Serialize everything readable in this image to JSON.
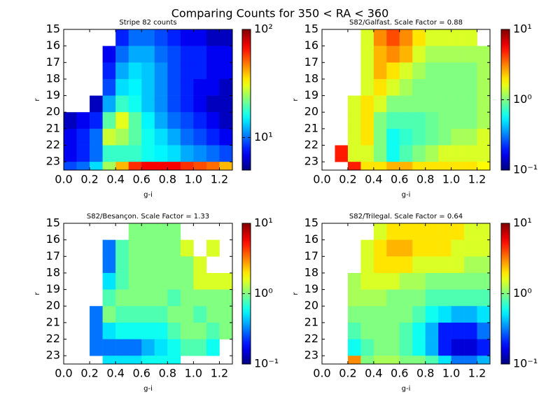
{
  "title": "Comparing Counts for 350 < RA < 360",
  "chart_data": [
    {
      "type": "heatmap",
      "title": "Stripe 82 counts",
      "xlabel": "g-i",
      "ylabel": "r",
      "colormap": "jet",
      "xbins": [
        0,
        0.1,
        0.2,
        0.3,
        0.4,
        0.5,
        0.6,
        0.7,
        0.8,
        0.9,
        1.0,
        1.1,
        1.2,
        1.3
      ],
      "ybins": [
        15,
        16,
        17,
        18,
        19,
        20,
        21,
        22,
        23,
        23.5
      ],
      "values": [
        [
          null,
          null,
          null,
          null,
          8,
          10,
          10,
          9,
          8,
          7,
          7,
          6,
          6
        ],
        [
          null,
          null,
          null,
          7,
          10,
          12,
          12,
          10,
          9,
          8,
          8,
          7,
          7
        ],
        [
          null,
          null,
          null,
          8,
          12,
          14,
          13,
          11,
          9,
          8,
          8,
          7,
          7
        ],
        [
          null,
          null,
          null,
          9,
          14,
          15,
          13,
          11,
          9,
          8,
          7,
          7,
          6
        ],
        [
          null,
          null,
          6,
          12,
          18,
          16,
          13,
          11,
          9,
          8,
          7,
          6,
          6
        ],
        [
          6,
          7,
          8,
          20,
          30,
          20,
          15,
          12,
          10,
          9,
          8,
          7,
          6
        ],
        [
          7,
          8,
          10,
          28,
          25,
          20,
          16,
          14,
          12,
          10,
          9,
          8,
          7
        ],
        [
          7,
          8,
          10,
          18,
          18,
          18,
          16,
          15,
          14,
          12,
          11,
          10,
          9
        ],
        [
          9,
          10,
          14,
          25,
          40,
          60,
          70,
          70,
          70,
          60,
          55,
          50,
          40
        ]
      ],
      "xlim": [
        0,
        1.3
      ],
      "ylim": [
        15,
        23.5
      ],
      "y_inverted": true,
      "xticks": [
        {
          "value": 0,
          "label": "0.0"
        },
        {
          "value": 0.2,
          "label": "0.2"
        },
        {
          "value": 0.4,
          "label": "0.4"
        },
        {
          "value": 0.6,
          "label": "0.6"
        },
        {
          "value": 0.8,
          "label": "0.8"
        },
        {
          "value": 1.0,
          "label": "1.0"
        },
        {
          "value": 1.2,
          "label": "1.2"
        }
      ],
      "yticks": [
        15,
        16,
        17,
        18,
        19,
        20,
        21,
        22,
        23
      ],
      "colorbar": {
        "scale": "log",
        "clim": [
          5,
          100
        ],
        "ticks": [
          {
            "value": 10,
            "label": "10¹"
          },
          {
            "value": 100,
            "label": "10²"
          }
        ]
      }
    },
    {
      "type": "heatmap",
      "title": "S82/Galfast. Scale Factor = 0.88",
      "xlabel": "g-i",
      "ylabel": "r",
      "colormap": "jet",
      "xbins": [
        0,
        0.1,
        0.2,
        0.3,
        0.4,
        0.5,
        0.6,
        0.7,
        0.8,
        0.9,
        1.0,
        1.1,
        1.2,
        1.3
      ],
      "ybins": [
        15,
        16,
        17,
        18,
        19,
        20,
        21,
        22,
        23,
        23.5
      ],
      "values": [
        [
          null,
          null,
          null,
          1.5,
          3,
          4,
          3,
          2,
          1.5,
          1.5,
          1.5,
          1.5,
          null
        ],
        [
          null,
          null,
          null,
          1.5,
          2.5,
          3,
          2.5,
          1.5,
          1.2,
          1.2,
          1.2,
          1.2,
          1.2
        ],
        [
          null,
          null,
          null,
          1.5,
          2.5,
          2,
          1.5,
          1.2,
          1,
          1,
          1,
          1,
          1.2
        ],
        [
          null,
          null,
          null,
          1.5,
          2,
          1.5,
          1.2,
          1,
          1,
          1,
          1,
          1,
          1.2
        ],
        [
          null,
          null,
          1.5,
          2,
          1.5,
          1,
          1,
          1,
          1,
          1,
          1,
          1,
          1.2
        ],
        [
          null,
          null,
          1.5,
          2,
          1,
          0.8,
          0.8,
          0.8,
          0.9,
          1,
          1,
          1,
          1.2
        ],
        [
          null,
          null,
          1.5,
          2,
          1,
          0.6,
          0.7,
          0.8,
          0.9,
          1,
          1.2,
          1.2,
          1.5
        ],
        [
          null,
          5,
          1.5,
          1.5,
          1,
          0.6,
          0.8,
          1,
          1.2,
          1.5,
          1.5,
          1.5,
          1.5
        ],
        [
          null,
          null,
          5,
          2,
          2,
          2.5,
          2.5,
          2,
          2,
          2,
          2,
          2,
          1.8
        ]
      ],
      "xlim": [
        0,
        1.3
      ],
      "ylim": [
        15,
        23.5
      ],
      "y_inverted": true,
      "xticks": [
        {
          "value": 0,
          "label": "0.0"
        },
        {
          "value": 0.2,
          "label": "0.2"
        },
        {
          "value": 0.4,
          "label": "0.4"
        },
        {
          "value": 0.6,
          "label": "0.6"
        },
        {
          "value": 0.8,
          "label": "0.8"
        },
        {
          "value": 1.0,
          "label": "1.0"
        },
        {
          "value": 1.2,
          "label": "1.2"
        }
      ],
      "yticks": [
        15,
        16,
        17,
        18,
        19,
        20,
        21,
        22,
        23
      ],
      "colorbar": {
        "scale": "log",
        "clim": [
          0.1,
          10
        ],
        "ticks": [
          {
            "value": 0.1,
            "label": "10⁻¹"
          },
          {
            "value": 1,
            "label": "10⁰"
          },
          {
            "value": 10,
            "label": "10¹"
          }
        ]
      }
    },
    {
      "type": "heatmap",
      "title": "S82/Besançon. Scale Factor = 1.33",
      "xlabel": "g-i",
      "ylabel": "r",
      "colormap": "jet",
      "xbins": [
        0,
        0.1,
        0.2,
        0.3,
        0.4,
        0.5,
        0.6,
        0.7,
        0.8,
        0.9,
        1.0,
        1.1,
        1.2,
        1.3
      ],
      "ybins": [
        15,
        16,
        17,
        18,
        19,
        20,
        21,
        22,
        23,
        23.5
      ],
      "values": [
        [
          null,
          null,
          null,
          null,
          null,
          1,
          1,
          1,
          1,
          null,
          null,
          null,
          null
        ],
        [
          null,
          null,
          null,
          0.3,
          0.8,
          1,
          1,
          1,
          1,
          1.5,
          null,
          1.5,
          null
        ],
        [
          null,
          null,
          null,
          0.3,
          0.8,
          1,
          1,
          1,
          1,
          1,
          1.5,
          null,
          null
        ],
        [
          null,
          null,
          null,
          0.5,
          0.8,
          1,
          1,
          1,
          1,
          1,
          1.5,
          1.5,
          1.5
        ],
        [
          null,
          null,
          null,
          0.8,
          1,
          1,
          1,
          1,
          0.8,
          1,
          1,
          1,
          1
        ],
        [
          null,
          null,
          0.3,
          1,
          0.8,
          0.8,
          0.8,
          0.8,
          1,
          1,
          0.8,
          1,
          1
        ],
        [
          null,
          null,
          0.3,
          0.5,
          0.6,
          0.6,
          0.6,
          0.6,
          0.8,
          1,
          1,
          0.8,
          1
        ],
        [
          null,
          null,
          0.3,
          0.3,
          0.3,
          0.3,
          0.4,
          0.5,
          0.6,
          0.8,
          0.8,
          0.6,
          null
        ],
        [
          null,
          null,
          null,
          0.5,
          0.5,
          0.5,
          0.6,
          0.6,
          0.6,
          null,
          null,
          null,
          null
        ]
      ],
      "xlim": [
        0,
        1.3
      ],
      "ylim": [
        15,
        23.5
      ],
      "y_inverted": true,
      "xticks": [
        {
          "value": 0,
          "label": "0.0"
        },
        {
          "value": 0.2,
          "label": "0.2"
        },
        {
          "value": 0.4,
          "label": "0.4"
        },
        {
          "value": 0.6,
          "label": "0.6"
        },
        {
          "value": 0.8,
          "label": "0.8"
        },
        {
          "value": 1.0,
          "label": "1.0"
        },
        {
          "value": 1.2,
          "label": "1.2"
        }
      ],
      "yticks": [
        15,
        16,
        17,
        18,
        19,
        20,
        21,
        22,
        23
      ],
      "colorbar": {
        "scale": "log",
        "clim": [
          0.1,
          10
        ],
        "ticks": [
          {
            "value": 0.1,
            "label": "10⁻¹"
          },
          {
            "value": 1,
            "label": "10⁰"
          },
          {
            "value": 10,
            "label": "10¹"
          }
        ]
      }
    },
    {
      "type": "heatmap",
      "title": "S82/Trilegal. Scale Factor = 0.64",
      "xlabel": "g-i",
      "ylabel": "r",
      "colormap": "jet",
      "xbins": [
        0,
        0.1,
        0.2,
        0.3,
        0.4,
        0.5,
        0.6,
        0.7,
        0.8,
        0.9,
        1.0,
        1.1,
        1.2,
        1.3
      ],
      "ybins": [
        15,
        16,
        17,
        18,
        19,
        20,
        21,
        22,
        23,
        23.5
      ],
      "values": [
        [
          null,
          null,
          null,
          null,
          1.5,
          2,
          2,
          2,
          2,
          2,
          2,
          1.5,
          1.5
        ],
        [
          null,
          null,
          null,
          1.5,
          2,
          2.5,
          2.5,
          2,
          2,
          2,
          1.5,
          1.5,
          1.5
        ],
        [
          null,
          null,
          null,
          1.5,
          2,
          2,
          2,
          1.5,
          1.5,
          1.5,
          1.5,
          1.2,
          1.2
        ],
        [
          null,
          null,
          1.2,
          1.5,
          1.5,
          1.5,
          1.2,
          1.2,
          1,
          1,
          1,
          1,
          1
        ],
        [
          null,
          null,
          1.2,
          1.2,
          1.2,
          1,
          1,
          1,
          0.8,
          0.8,
          0.8,
          0.8,
          0.8
        ],
        [
          null,
          null,
          1,
          1,
          1,
          1,
          1,
          0.8,
          0.6,
          0.5,
          0.4,
          0.4,
          0.5
        ],
        [
          null,
          null,
          0.8,
          1,
          1,
          1,
          0.8,
          0.6,
          0.4,
          0.2,
          0.2,
          0.2,
          0.3
        ],
        [
          null,
          null,
          0.6,
          0.8,
          1,
          1,
          0.8,
          0.6,
          0.4,
          0.2,
          0.15,
          0.15,
          0.2
        ],
        [
          null,
          null,
          3,
          1,
          1.2,
          1.2,
          1,
          1,
          0.8,
          0.5,
          0.3,
          0.3,
          0.4
        ]
      ],
      "xlim": [
        0,
        1.3
      ],
      "ylim": [
        15,
        23.5
      ],
      "y_inverted": true,
      "xticks": [
        {
          "value": 0,
          "label": "0.0"
        },
        {
          "value": 0.2,
          "label": "0.2"
        },
        {
          "value": 0.4,
          "label": "0.4"
        },
        {
          "value": 0.6,
          "label": "0.6"
        },
        {
          "value": 0.8,
          "label": "0.8"
        },
        {
          "value": 1.0,
          "label": "1.0"
        },
        {
          "value": 1.2,
          "label": "1.2"
        }
      ],
      "yticks": [
        15,
        16,
        17,
        18,
        19,
        20,
        21,
        22,
        23
      ],
      "colorbar": {
        "scale": "log",
        "clim": [
          0.1,
          10
        ],
        "ticks": [
          {
            "value": 0.1,
            "label": "10⁻¹"
          },
          {
            "value": 1,
            "label": "10⁰"
          },
          {
            "value": 10,
            "label": "10¹"
          }
        ]
      }
    }
  ]
}
